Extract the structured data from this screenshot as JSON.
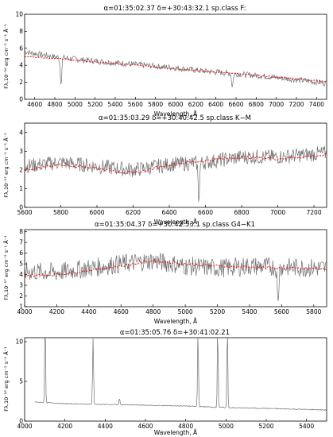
{
  "figure": {
    "colors": {
      "observed": "#707070",
      "model": "#e0201c",
      "axes": "#000000"
    }
  },
  "chart_data": [
    {
      "type": "line",
      "title": "α=01:35:02.37  δ=+30:43:32.1      sp.class F:",
      "xlabel": "Wavelength, Å",
      "ylabel": "Fλ,10⁻¹⁶ erg cm⁻² s⁻¹ Å⁻¹",
      "xlim": [
        4500,
        7500
      ],
      "ylim": [
        0,
        10
      ],
      "xticks": [
        4600,
        4800,
        5000,
        5200,
        5400,
        5600,
        5800,
        6000,
        6200,
        6400,
        6600,
        6800,
        7000,
        7200,
        7400
      ],
      "yticks": [
        0,
        2,
        4,
        6,
        8,
        10
      ],
      "series": [
        {
          "style": "observed",
          "x": [
            4500,
            4800,
            5100,
            5400,
            5700,
            6000,
            6300,
            6600,
            6900,
            7200,
            7500
          ],
          "y": [
            5.6,
            5.0,
            4.6,
            4.3,
            4.0,
            3.7,
            3.3,
            3.0,
            2.7,
            2.3,
            1.9
          ],
          "noise": 0.35,
          "dips": [
            [
              4861,
              3.0
            ],
            [
              6563,
              1.5
            ]
          ]
        },
        {
          "style": "model",
          "x": [
            4500,
            4800,
            5100,
            5400,
            5700,
            6000,
            6300,
            6600,
            6900,
            7200,
            7500
          ],
          "y": [
            5.1,
            4.8,
            4.5,
            4.2,
            3.9,
            3.6,
            3.3,
            3.0,
            2.7,
            2.4,
            2.1
          ],
          "noise": 0.08,
          "dashed": true
        }
      ]
    },
    {
      "type": "line",
      "title": "α=01:35:03.29  δ=+30:40:42.5      sp.class K−M",
      "xlabel": "Wavelength, Å",
      "ylabel": "Fλ,10⁻¹⁷ erg cm⁻² s⁻¹ Å⁻¹",
      "xlim": [
        5600,
        7270
      ],
      "ylim": [
        0,
        4.5
      ],
      "xticks": [
        5600,
        5800,
        6000,
        6200,
        6400,
        6600,
        6800,
        7000,
        7200
      ],
      "yticks": [
        0,
        1,
        2,
        3,
        4
      ],
      "series": [
        {
          "style": "observed",
          "x": [
            5600,
            5800,
            6000,
            6200,
            6400,
            6600,
            6800,
            7000,
            7270
          ],
          "y": [
            2.2,
            2.4,
            2.2,
            2.0,
            2.3,
            2.4,
            2.7,
            2.7,
            2.9
          ],
          "noise": 0.4,
          "dips": [
            [
              6563,
              1.9
            ]
          ]
        },
        {
          "style": "model",
          "x": [
            5600,
            5800,
            6000,
            6200,
            6400,
            6600,
            6800,
            7000,
            7270
          ],
          "y": [
            2.0,
            2.3,
            2.1,
            1.8,
            2.3,
            2.5,
            2.7,
            2.6,
            2.8
          ],
          "noise": 0.08,
          "dashed": true
        }
      ]
    },
    {
      "type": "line",
      "title": "α=01:35:04.37  δ=+30:42:53.1      sp.class G4−K1",
      "xlabel": "Wavelength, Å",
      "ylabel": "Fλ,10⁻¹⁷ erg cm⁻² s⁻¹ Å⁻¹",
      "xlim": [
        4000,
        5880
      ],
      "ylim": [
        1,
        8.2
      ],
      "xticks": [
        4000,
        4200,
        4400,
        4600,
        4800,
        5000,
        5200,
        5400,
        5600,
        5800
      ],
      "yticks": [
        1,
        2,
        3,
        4,
        5,
        6,
        7,
        8
      ],
      "series": [
        {
          "style": "observed",
          "x": [
            4000,
            4200,
            4400,
            4600,
            4800,
            5000,
            5200,
            5400,
            5600,
            5880
          ],
          "y": [
            4.3,
            4.2,
            4.6,
            5.0,
            5.3,
            4.8,
            4.6,
            4.8,
            4.7,
            4.6
          ],
          "noise": 0.9,
          "dips": [
            [
              5577,
              3.5
            ]
          ]
        },
        {
          "style": "model",
          "x": [
            4000,
            4200,
            4400,
            4600,
            4800,
            5000,
            5200,
            5400,
            5600,
            5880
          ],
          "y": [
            3.9,
            4.0,
            4.4,
            4.8,
            5.3,
            5.0,
            4.8,
            4.7,
            4.6,
            4.5
          ],
          "noise": 0.12,
          "dashed": true
        }
      ]
    },
    {
      "type": "line",
      "title": "α=01:35:05.76  δ=+30:41:02.21",
      "xlabel": "Wavelength, Å",
      "ylabel": "Fλ,10⁻¹⁶ erg cm⁻² s⁻¹ Å⁻¹",
      "xlim": [
        4000,
        5500
      ],
      "ylim": [
        0,
        10.5
      ],
      "xticks": [
        4000,
        4200,
        4400,
        4600,
        4800,
        5000,
        5200,
        5400
      ],
      "yticks": [
        0,
        5,
        10
      ],
      "series": [
        {
          "style": "observed",
          "x": [
            4050,
            4200,
            4400,
            4600,
            4800,
            5000,
            5200,
            5500
          ],
          "y": [
            2.4,
            2.2,
            2.1,
            2.0,
            1.9,
            1.7,
            1.6,
            1.4
          ],
          "noise": 0.05,
          "peaks": [
            [
              4102,
              10.5
            ],
            [
              4340,
              10.5
            ],
            [
              4471,
              0.9
            ],
            [
              4861,
              10.5
            ],
            [
              4959,
              10.5
            ],
            [
              5007,
              10.5
            ]
          ]
        }
      ]
    }
  ]
}
